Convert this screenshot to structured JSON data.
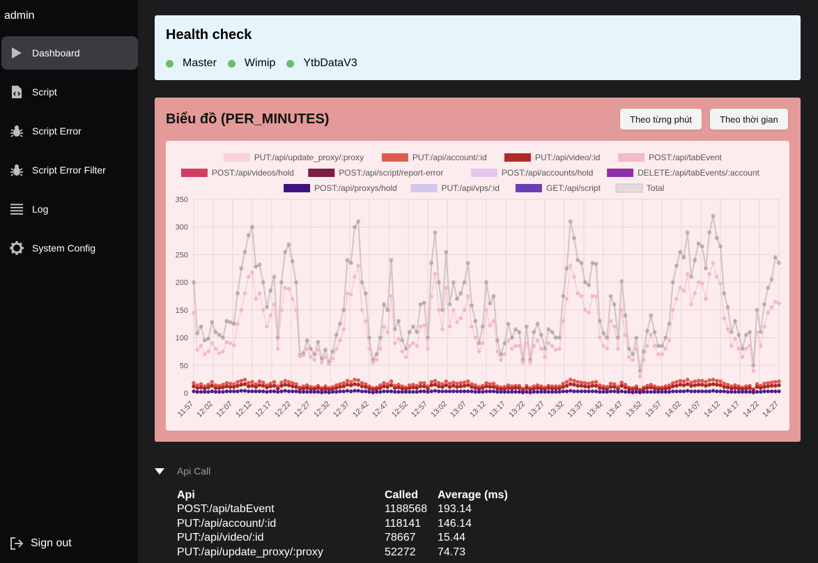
{
  "sidebar": {
    "brand": "admin",
    "items": [
      {
        "label": "Dashboard",
        "icon": "play-icon"
      },
      {
        "label": "Script",
        "icon": "script-file-icon"
      },
      {
        "label": "Script Error",
        "icon": "bug-icon"
      },
      {
        "label": "Script Error Filter",
        "icon": "bug-icon"
      },
      {
        "label": "Log",
        "icon": "list-icon"
      },
      {
        "label": "System Config",
        "icon": "gear-icon"
      }
    ],
    "signout": "Sign out"
  },
  "health": {
    "title": "Health check",
    "services": [
      "Master",
      "Wimip",
      "YtbDataV3"
    ],
    "status_color": "#6cbc6c"
  },
  "chart_panel": {
    "title": "Biểu đồ (PER_MINUTES)",
    "btn_minute": "Theo từng phút",
    "btn_time": "Theo thời gian"
  },
  "chart_data": {
    "type": "line",
    "ylim": [
      0,
      350
    ],
    "yticks": [
      0,
      50,
      100,
      150,
      200,
      250,
      300,
      350
    ],
    "xticks": [
      "11:57",
      "12:02",
      "12:07",
      "12:12",
      "12:17",
      "12:22",
      "12:27",
      "12:32",
      "12:37",
      "12:42",
      "12:47",
      "12:52",
      "12:57",
      "13:02",
      "13:07",
      "13:12",
      "13:17",
      "13:22",
      "13:27",
      "13:32",
      "13:37",
      "13:42",
      "13:47",
      "13:52",
      "13:57",
      "14:02",
      "14:07",
      "14:12",
      "14:17",
      "14:22",
      "14:27"
    ],
    "legend": [
      {
        "name": "PUT:/api/update_proxy/:proxy",
        "color": "#f9d3d6"
      },
      {
        "name": "PUT:/api/account/:id",
        "color": "#e05b52"
      },
      {
        "name": "PUT:/api/video/:id",
        "color": "#ad2a26"
      },
      {
        "name": "POST:/api/tabEvent",
        "color": "#f4b8c6"
      },
      {
        "name": "POST:/api/videos/hold",
        "color": "#d23c62"
      },
      {
        "name": "POST:/api/script/report-error",
        "color": "#7a1f45"
      },
      {
        "name": "POST:/api/accounts/hold",
        "color": "#e4c7ec"
      },
      {
        "name": "DELETE:/api/tabEvents/:account",
        "color": "#8e2fb0"
      },
      {
        "name": "POST:/api/proxys/hold",
        "color": "#3d1580"
      },
      {
        "name": "PUT:/api/vps/:id",
        "color": "#d2c7ef"
      },
      {
        "name": "GET:/api/script",
        "color": "#6a40b6"
      },
      {
        "name": "Total",
        "color": "#e4dadb"
      }
    ],
    "series": [
      {
        "name": "Total",
        "values": [
          200,
          108,
          120,
          95,
          98,
          128,
          110,
          105,
          100,
          130,
          128,
          125,
          180,
          225,
          255,
          285,
          300,
          228,
          232,
          200,
          155,
          185,
          210,
          100,
          200,
          255,
          268,
          238,
          200,
          68,
          72,
          95,
          80,
          70,
          92,
          62,
          78,
          55,
          75,
          105,
          125,
          150,
          240,
          235,
          300,
          310,
          200,
          180,
          100,
          60,
          70,
          100,
          160,
          150,
          240,
          115,
          130,
          95,
          80,
          110,
          120,
          110,
          160,
          163,
          100,
          235,
          290,
          200,
          150,
          255,
          160,
          200,
          170,
          180,
          200,
          235,
          158,
          130,
          90,
          120,
          200,
          162,
          175,
          95,
          70,
          90,
          125,
          100,
          115,
          110,
          60,
          120,
          60,
          110,
          125,
          105,
          80,
          115,
          110,
          100,
          100,
          175,
          225,
          310,
          280,
          240,
          235,
          200,
          195,
          235,
          233,
          130,
          108,
          100,
          175,
          160,
          100,
          202,
          140,
          80,
          70,
          100,
          40,
          75,
          112,
          140,
          110,
          85,
          85,
          100,
          125,
          200,
          230,
          255,
          245,
          290,
          210,
          240,
          270,
          265,
          225,
          290,
          320,
          280,
          265,
          180,
          155,
          110,
          130,
          105,
          80,
          105,
          110,
          50,
          150,
          110,
          160,
          190,
          205,
          245,
          235
        ]
      },
      {
        "name": "POST:/api/tabEvent",
        "values": [
          145,
          78,
          85,
          70,
          75,
          90,
          80,
          72,
          75,
          92,
          90,
          86,
          125,
          150,
          180,
          210,
          218,
          170,
          180,
          150,
          120,
          140,
          160,
          80,
          150,
          190,
          188,
          170,
          150,
          66,
          68,
          80,
          65,
          60,
          78,
          55,
          65,
          52,
          62,
          80,
          95,
          115,
          180,
          178,
          210,
          230,
          150,
          130,
          80,
          55,
          60,
          80,
          120,
          110,
          175,
          90,
          98,
          75,
          65,
          85,
          90,
          85,
          120,
          122,
          80,
          175,
          215,
          150,
          115,
          190,
          120,
          150,
          128,
          135,
          150,
          175,
          120,
          100,
          75,
          90,
          150,
          122,
          130,
          75,
          60,
          70,
          95,
          80,
          85,
          85,
          55,
          90,
          55,
          85,
          95,
          80,
          65,
          90,
          85,
          78,
          80,
          130,
          170,
          230,
          210,
          180,
          175,
          150,
          145,
          175,
          175,
          100,
          85,
          80,
          130,
          120,
          80,
          150,
          105,
          65,
          60,
          80,
          30,
          60,
          85,
          105,
          85,
          70,
          70,
          80,
          95,
          150,
          170,
          190,
          185,
          215,
          160,
          180,
          200,
          198,
          170,
          215,
          235,
          210,
          198,
          135,
          115,
          85,
          98,
          80,
          65,
          80,
          85,
          40,
          110,
          85,
          120,
          145,
          155,
          165,
          162
        ]
      },
      {
        "name": "PUT:/api/account/:id",
        "values": [
          18,
          14,
          16,
          12,
          15,
          20,
          14,
          13,
          15,
          18,
          17,
          16,
          20,
          22,
          24,
          18,
          20,
          16,
          21,
          19,
          14,
          17,
          20,
          12,
          19,
          22,
          20,
          18,
          16,
          10,
          12,
          14,
          11,
          10,
          13,
          9,
          12,
          9,
          11,
          14,
          16,
          18,
          22,
          20,
          24,
          23,
          18,
          16,
          12,
          9,
          10,
          14,
          18,
          16,
          21,
          13,
          15,
          12,
          10,
          14,
          15,
          13,
          18,
          18,
          12,
          20,
          22,
          18,
          16,
          21,
          17,
          19,
          17,
          18,
          19,
          21,
          16,
          14,
          11,
          13,
          18,
          16,
          17,
          12,
          10,
          11,
          14,
          12,
          13,
          13,
          8,
          13,
          9,
          12,
          14,
          12,
          10,
          13,
          12,
          12,
          12,
          17,
          20,
          24,
          22,
          20,
          19,
          18,
          17,
          19,
          20,
          14,
          12,
          11,
          17,
          16,
          11,
          19,
          15,
          10,
          9,
          12,
          6,
          10,
          13,
          15,
          12,
          10,
          10,
          12,
          14,
          18,
          20,
          22,
          21,
          24,
          19,
          21,
          22,
          22,
          20,
          23,
          24,
          22,
          21,
          17,
          15,
          12,
          14,
          12,
          10,
          12,
          13,
          7,
          16,
          13,
          17,
          18,
          19,
          20,
          21
        ]
      },
      {
        "name": "PUT:/api/video/:id",
        "values": [
          12,
          9,
          10,
          8,
          10,
          13,
          9,
          9,
          10,
          12,
          11,
          11,
          13,
          15,
          16,
          12,
          13,
          11,
          14,
          13,
          10,
          12,
          13,
          8,
          13,
          15,
          14,
          12,
          11,
          7,
          8,
          9,
          7,
          7,
          9,
          6,
          8,
          6,
          7,
          9,
          11,
          12,
          15,
          14,
          16,
          15,
          12,
          11,
          8,
          6,
          7,
          9,
          12,
          11,
          14,
          9,
          10,
          8,
          7,
          9,
          10,
          9,
          12,
          12,
          8,
          14,
          15,
          12,
          11,
          14,
          11,
          13,
          11,
          12,
          13,
          14,
          11,
          9,
          7,
          9,
          12,
          11,
          11,
          8,
          7,
          7,
          9,
          8,
          9,
          9,
          5,
          9,
          6,
          8,
          9,
          8,
          7,
          9,
          8,
          8,
          8,
          11,
          13,
          16,
          15,
          13,
          13,
          12,
          11,
          13,
          13,
          9,
          8,
          7,
          11,
          11,
          7,
          13,
          10,
          7,
          6,
          8,
          4,
          7,
          9,
          10,
          8,
          7,
          7,
          8,
          9,
          12,
          13,
          15,
          14,
          16,
          13,
          14,
          15,
          15,
          13,
          15,
          16,
          15,
          14,
          11,
          10,
          8,
          9,
          8,
          7,
          8,
          9,
          5,
          11,
          9,
          11,
          12,
          13,
          13,
          14
        ]
      },
      {
        "name": "GET:/api/script",
        "values": [
          3,
          2,
          2,
          2,
          2,
          3,
          2,
          2,
          2,
          3,
          3,
          3,
          3,
          4,
          4,
          3,
          3,
          3,
          3,
          3,
          2,
          3,
          3,
          2,
          3,
          4,
          3,
          3,
          3,
          2,
          2,
          2,
          2,
          2,
          2,
          1,
          2,
          1,
          2,
          2,
          3,
          3,
          4,
          3,
          4,
          4,
          3,
          3,
          2,
          1,
          2,
          2,
          3,
          3,
          3,
          2,
          2,
          2,
          2,
          2,
          2,
          2,
          3,
          3,
          2,
          3,
          4,
          3,
          3,
          3,
          3,
          3,
          3,
          3,
          3,
          3,
          3,
          2,
          2,
          2,
          3,
          3,
          3,
          2,
          2,
          2,
          2,
          2,
          2,
          2,
          1,
          2,
          1,
          2,
          2,
          2,
          2,
          2,
          2,
          2,
          2,
          3,
          3,
          4,
          3,
          3,
          3,
          3,
          3,
          3,
          3,
          2,
          2,
          2,
          3,
          3,
          2,
          3,
          2,
          2,
          1,
          2,
          1,
          2,
          2,
          2,
          2,
          2,
          2,
          2,
          2,
          3,
          3,
          3,
          3,
          4,
          3,
          3,
          3,
          3,
          3,
          3,
          4,
          3,
          3,
          3,
          2,
          2,
          2,
          2,
          2,
          2,
          2,
          1,
          2,
          2,
          3,
          3,
          3,
          3,
          3
        ]
      }
    ]
  },
  "api_call": {
    "title": "Api Call",
    "headers": [
      "Api",
      "Called",
      "Average (ms)"
    ],
    "rows": [
      [
        "POST:/api/tabEvent",
        "1188568",
        "193.14"
      ],
      [
        "PUT:/api/account/:id",
        "118141",
        "146.14"
      ],
      [
        "PUT:/api/video/:id",
        "78667",
        "15.44"
      ],
      [
        "PUT:/api/update_proxy/:proxy",
        "52272",
        "74.73"
      ]
    ]
  }
}
